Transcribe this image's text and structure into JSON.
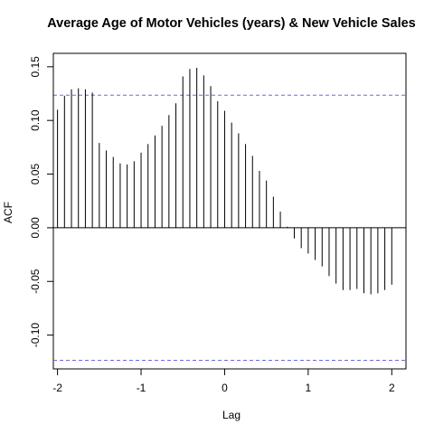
{
  "chart_data": {
    "type": "bar",
    "title": "Average Age of Motor Vehicles (years) & New Vehicle Sales",
    "xlabel": "Lag",
    "ylabel": "ACF",
    "xlim": [
      -2.05,
      2.17
    ],
    "ylim": [
      -0.1315,
      0.1625
    ],
    "x_ticks": [
      -2,
      -1,
      0,
      1,
      2
    ],
    "x_tick_labels": [
      "-2",
      "-1",
      "0",
      "1",
      "2"
    ],
    "y_ticks": [
      -0.1,
      -0.05,
      0.0,
      0.05,
      0.1,
      0.15
    ],
    "y_tick_labels": [
      "-0.10",
      "-0.05",
      "0.00",
      "0.05",
      "0.10",
      "0.15"
    ],
    "confidence_band": [
      -0.1235,
      0.1235
    ],
    "confidence_color": "#6b6bd6",
    "grid": false,
    "x": [
      -2.0,
      -1.9167,
      -1.8333,
      -1.75,
      -1.6667,
      -1.5833,
      -1.5,
      -1.4167,
      -1.3333,
      -1.25,
      -1.1667,
      -1.0833,
      -1.0,
      -0.9167,
      -0.8333,
      -0.75,
      -0.6667,
      -0.5833,
      -0.5,
      -0.4167,
      -0.3333,
      -0.25,
      -0.1667,
      -0.0833,
      0.0,
      0.0833,
      0.1667,
      0.25,
      0.3333,
      0.4167,
      0.5,
      0.5833,
      0.6667,
      0.75,
      0.8333,
      0.9167,
      1.0,
      1.0833,
      1.1667,
      1.25,
      1.3333,
      1.4167,
      1.5,
      1.5833,
      1.6667,
      1.75,
      1.8333,
      1.9167,
      2.0
    ],
    "values": [
      0.11,
      0.123,
      0.129,
      0.13,
      0.129,
      0.126,
      0.079,
      0.072,
      0.066,
      0.06,
      0.059,
      0.062,
      0.07,
      0.078,
      0.086,
      0.095,
      0.105,
      0.116,
      0.141,
      0.148,
      0.149,
      0.142,
      0.132,
      0.118,
      0.109,
      0.098,
      0.088,
      0.078,
      0.067,
      0.053,
      0.044,
      0.029,
      0.015,
      0.001,
      -0.01,
      -0.019,
      -0.024,
      -0.03,
      -0.036,
      -0.045,
      -0.052,
      -0.058,
      -0.058,
      -0.057,
      -0.061,
      -0.062,
      -0.061,
      -0.058,
      -0.053
    ]
  }
}
